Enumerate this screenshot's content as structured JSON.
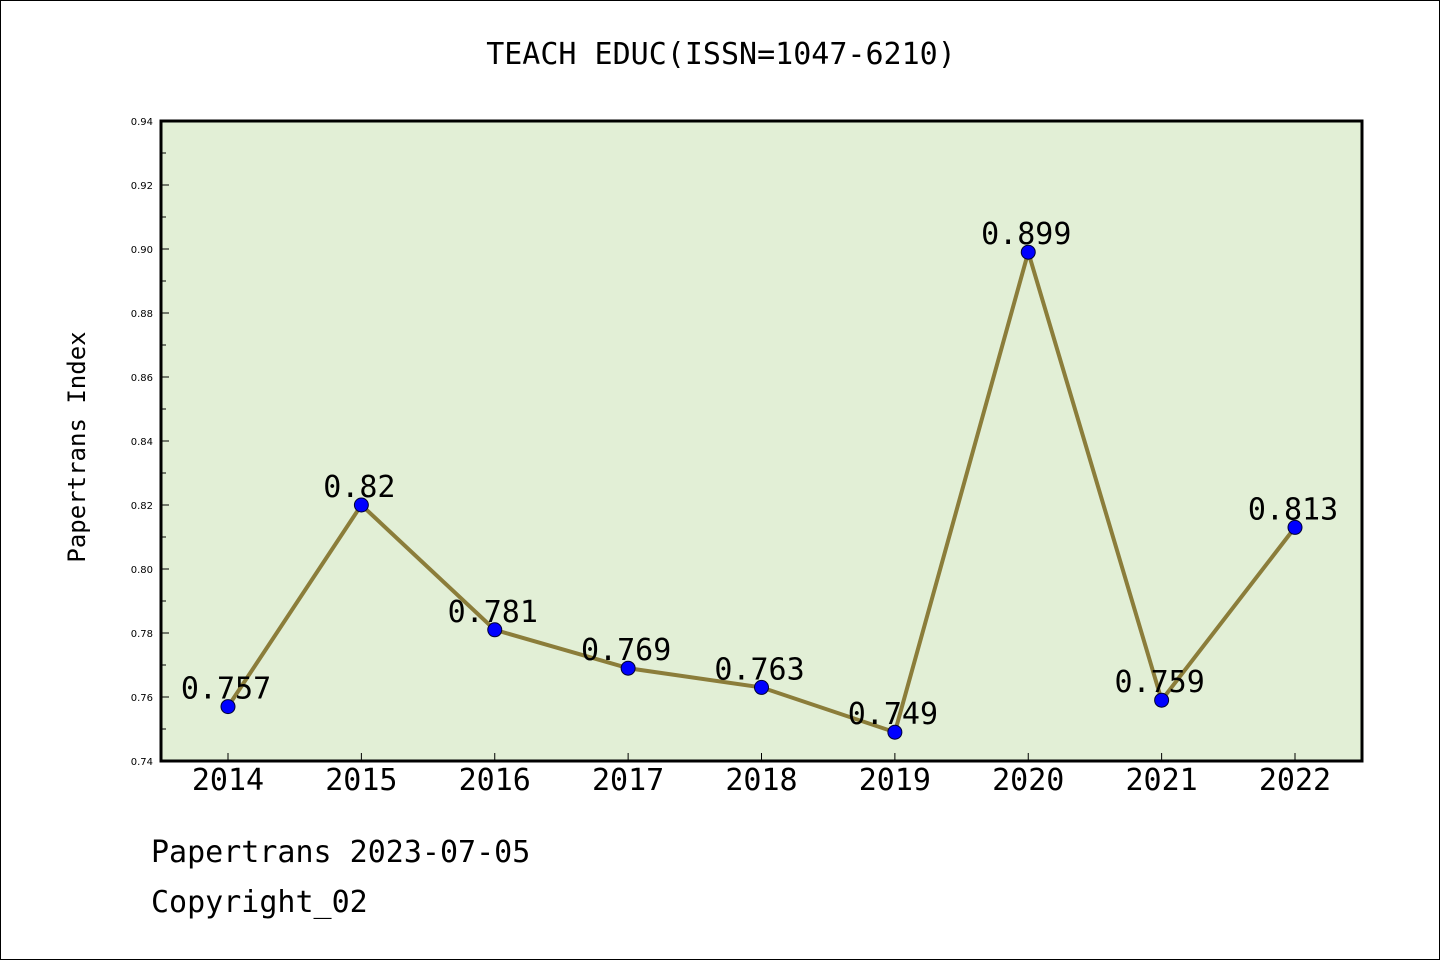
{
  "chart_data": {
    "type": "line",
    "title": "TEACH EDUC(ISSN=1047-6210)",
    "xlabel": "",
    "ylabel": "Papertrans Index",
    "categories": [
      "2014",
      "2015",
      "2016",
      "2017",
      "2018",
      "2019",
      "2020",
      "2021",
      "2022"
    ],
    "values": [
      0.757,
      0.82,
      0.781,
      0.769,
      0.763,
      0.749,
      0.899,
      0.759,
      0.813
    ],
    "data_labels": [
      "0.757",
      "0.82",
      "0.781",
      "0.769",
      "0.763",
      "0.749",
      "0.899",
      "0.759",
      "0.813"
    ],
    "ylim": [
      0.74,
      0.94
    ],
    "yticks": [
      "0.74",
      "0.76",
      "0.78",
      "0.80",
      "0.82",
      "0.84",
      "0.86",
      "0.88",
      "0.90",
      "0.92",
      "0.94"
    ],
    "grid": false,
    "colors": {
      "plot_background": "#e2efd6",
      "line": "#8b7d3a",
      "marker": "#0000ff"
    }
  },
  "footer": {
    "line1": "Papertrans 2023-07-05",
    "line2": "Copyright_02"
  }
}
